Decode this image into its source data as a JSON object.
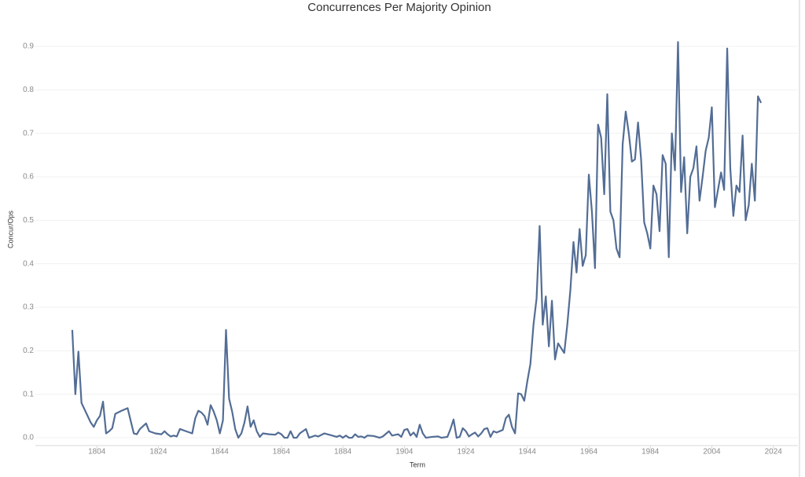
{
  "chart_data": {
    "type": "line",
    "title": "Concurrences Per Majority Opinion",
    "x_label": "Term",
    "y_label": "Concur/Ops",
    "x": [
      1796,
      1797,
      1798,
      1799,
      1800,
      1801,
      1802,
      1803,
      1804,
      1805,
      1806,
      1807,
      1808,
      1809,
      1810,
      1812,
      1814,
      1816,
      1817,
      1818,
      1820,
      1821,
      1823,
      1825,
      1826,
      1827,
      1828,
      1829,
      1830,
      1831,
      1833,
      1835,
      1836,
      1837,
      1838,
      1839,
      1840,
      1841,
      1842,
      1843,
      1844,
      1845,
      1846,
      1847,
      1848,
      1849,
      1850,
      1851,
      1852,
      1853,
      1854,
      1855,
      1856,
      1857,
      1858,
      1860,
      1862,
      1863,
      1864,
      1865,
      1866,
      1867,
      1868,
      1869,
      1870,
      1872,
      1873,
      1875,
      1876,
      1878,
      1880,
      1882,
      1883,
      1884,
      1885,
      1886,
      1887,
      1888,
      1889,
      1890,
      1891,
      1892,
      1894,
      1896,
      1897,
      1899,
      1900,
      1902,
      1903,
      1904,
      1905,
      1906,
      1907,
      1908,
      1909,
      1910,
      1911,
      1913,
      1915,
      1916,
      1918,
      1919,
      1920,
      1921,
      1922,
      1923,
      1924,
      1925,
      1926,
      1927,
      1928,
      1929,
      1930,
      1931,
      1932,
      1933,
      1934,
      1936,
      1937,
      1938,
      1939,
      1940,
      1941,
      1942,
      1943,
      1944,
      1945,
      1946,
      1947,
      1948,
      1949,
      1950,
      1951,
      1952,
      1953,
      1954,
      1956,
      1957,
      1958,
      1959,
      1960,
      1961,
      1962,
      1963,
      1964,
      1965,
      1966,
      1967,
      1968,
      1969,
      1970,
      1971,
      1972,
      1973,
      1974,
      1975,
      1976,
      1977,
      1978,
      1979,
      1980,
      1981,
      1982,
      1983,
      1984,
      1985,
      1986,
      1987,
      1988,
      1989,
      1990,
      1991,
      1992,
      1993,
      1994,
      1995,
      1996,
      1997,
      1998,
      1999,
      2000,
      2001,
      2002,
      2003,
      2004,
      2005,
      2006,
      2007,
      2008,
      2009,
      2010,
      2011,
      2012,
      2013,
      2014,
      2015,
      2016,
      2017,
      2018,
      2019,
      2020
    ],
    "series": [
      {
        "name": "Concur/Ops",
        "color": "#536d95",
        "values": [
          0.248,
          0.1,
          0.198,
          0.08,
          0.065,
          0.05,
          0.035,
          0.025,
          0.04,
          0.05,
          0.083,
          0.01,
          0.015,
          0.022,
          0.055,
          0.062,
          0.068,
          0.01,
          0.008,
          0.02,
          0.033,
          0.015,
          0.01,
          0.008,
          0.015,
          0.008,
          0.003,
          0.005,
          0.003,
          0.02,
          0.015,
          0.01,
          0.045,
          0.062,
          0.058,
          0.05,
          0.03,
          0.075,
          0.06,
          0.04,
          0.01,
          0.04,
          0.248,
          0.09,
          0.06,
          0.02,
          0,
          0.01,
          0.035,
          0.072,
          0.025,
          0.04,
          0.015,
          0.002,
          0.01,
          0.008,
          0.007,
          0.012,
          0.008,
          0,
          0,
          0.015,
          0,
          0,
          0.01,
          0.02,
          0,
          0.005,
          0.003,
          0.01,
          0.006,
          0.002,
          0.005,
          0,
          0.005,
          0,
          0,
          0.008,
          0.002,
          0.003,
          0,
          0.005,
          0.004,
          0,
          0.003,
          0.015,
          0.005,
          0.008,
          0.002,
          0.018,
          0.02,
          0.005,
          0.012,
          0.002,
          0.03,
          0.01,
          0,
          0.002,
          0.003,
          0,
          0.002,
          0.02,
          0.042,
          0,
          0.002,
          0.022,
          0.015,
          0.003,
          0.008,
          0.012,
          0.003,
          0.01,
          0.02,
          0.022,
          0.002,
          0.015,
          0.012,
          0.018,
          0.045,
          0.053,
          0.025,
          0.01,
          0.102,
          0.1,
          0.085,
          0.13,
          0.17,
          0.26,
          0.32,
          0.487,
          0.26,
          0.325,
          0.21,
          0.315,
          0.18,
          0.217,
          0.195,
          0.26,
          0.34,
          0.45,
          0.38,
          0.48,
          0.395,
          0.42,
          0.605,
          0.52,
          0.39,
          0.72,
          0.69,
          0.56,
          0.79,
          0.52,
          0.5,
          0.435,
          0.415,
          0.675,
          0.75,
          0.7,
          0.635,
          0.64,
          0.725,
          0.64,
          0.495,
          0.47,
          0.435,
          0.58,
          0.56,
          0.475,
          0.65,
          0.63,
          0.415,
          0.7,
          0.615,
          0.91,
          0.565,
          0.645,
          0.47,
          0.6,
          0.62,
          0.67,
          0.545,
          0.6,
          0.66,
          0.69,
          0.76,
          0.53,
          0.57,
          0.61,
          0.57,
          0.895,
          0.62,
          0.51,
          0.58,
          0.565,
          0.695,
          0.5,
          0.535,
          0.63,
          0.545,
          0.785,
          0.77
        ]
      }
    ],
    "xlim": [
      1784,
      2032
    ],
    "xticks": [
      1804,
      1824,
      1844,
      1864,
      1884,
      1904,
      1924,
      1944,
      1964,
      1984,
      2004,
      2024
    ],
    "ylim": [
      -0.018,
      0.956
    ],
    "yticks": [
      {
        "value": 0,
        "label": "0.0"
      },
      0.1,
      0.2,
      0.3,
      0.4,
      0.5,
      0.6,
      0.7,
      0.8,
      0.9
    ],
    "grid": true
  }
}
